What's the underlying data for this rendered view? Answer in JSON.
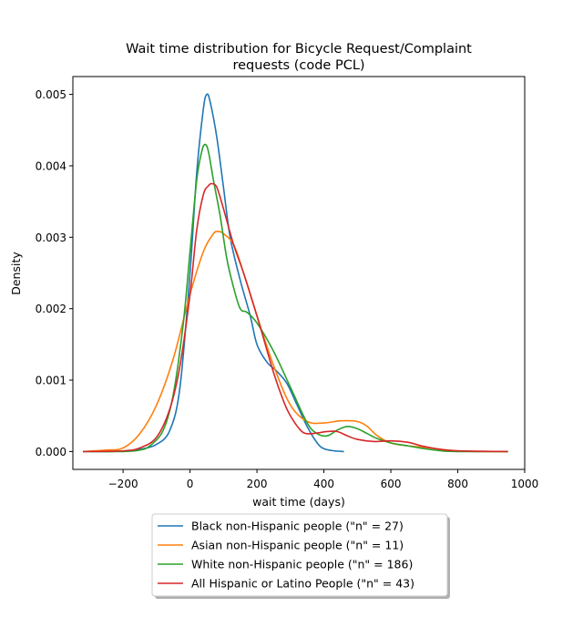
{
  "chart_data": {
    "type": "line",
    "title_line1": "Wait time distribution  for Bicycle Request/Complaint",
    "title_line2": "requests (code PCL)",
    "xlabel": "wait time (days)",
    "ylabel": "Density",
    "xlim": [
      -350,
      1000
    ],
    "ylim": [
      -0.00025,
      0.00525
    ],
    "xticks": [
      -200,
      0,
      200,
      400,
      600,
      800,
      1000
    ],
    "xtick_labels": [
      "−200",
      "0",
      "200",
      "400",
      "600",
      "800",
      "1000"
    ],
    "yticks": [
      0,
      0.001,
      0.002,
      0.003,
      0.004,
      0.005
    ],
    "ytick_labels": [
      "0.000",
      "0.001",
      "0.002",
      "0.003",
      "0.004",
      "0.005"
    ],
    "grid": false,
    "legend_position": "below-center",
    "series": [
      {
        "name": "Black non-Hispanic people (\"n\" = 27)",
        "color": "#1f77b4",
        "x": [
          -300,
          -200,
          -150,
          -100,
          -60,
          -30,
          0,
          20,
          40,
          50,
          60,
          80,
          100,
          120,
          150,
          180,
          200,
          230,
          260,
          290,
          320,
          350,
          380,
          400,
          430,
          460
        ],
        "y": [
          0,
          5e-06,
          3e-05,
          0.0001,
          0.0003,
          0.0009,
          0.0025,
          0.0039,
          0.0048,
          0.005,
          0.0049,
          0.0044,
          0.0037,
          0.003,
          0.0024,
          0.0019,
          0.0015,
          0.00125,
          0.00112,
          0.00095,
          0.00065,
          0.00035,
          0.00012,
          4e-05,
          1e-05,
          0
        ]
      },
      {
        "name": "Asian non-Hispanic people (\"n\" = 11)",
        "color": "#ff7f0e",
        "x": [
          -320,
          -250,
          -200,
          -150,
          -100,
          -50,
          0,
          40,
          70,
          85,
          100,
          130,
          160,
          200,
          250,
          300,
          350,
          400,
          450,
          500,
          530,
          560,
          600,
          650,
          700,
          750,
          800,
          850,
          950
        ],
        "y": [
          0,
          2e-05,
          5e-05,
          0.00025,
          0.00065,
          0.0013,
          0.0022,
          0.0028,
          0.00305,
          0.00308,
          0.00305,
          0.0029,
          0.0025,
          0.0019,
          0.0012,
          0.00065,
          0.00042,
          0.0004,
          0.00043,
          0.00042,
          0.00035,
          0.00022,
          0.00012,
          8e-05,
          6e-05,
          3e-05,
          1e-05,
          0,
          0
        ]
      },
      {
        "name": "White non-Hispanic people (\"n\" = 186)",
        "color": "#2ca02c",
        "x": [
          -320,
          -200,
          -150,
          -120,
          -80,
          -50,
          -20,
          0,
          20,
          35,
          45,
          55,
          70,
          90,
          110,
          130,
          150,
          170,
          200,
          250,
          300,
          350,
          380,
          410,
          440,
          470,
          500,
          530,
          560,
          600,
          650,
          700,
          750,
          800,
          950
        ],
        "y": [
          0,
          0,
          2e-05,
          8e-05,
          0.0003,
          0.0008,
          0.0018,
          0.0028,
          0.0038,
          0.0042,
          0.0043,
          0.0042,
          0.0038,
          0.0033,
          0.0027,
          0.0023,
          0.002,
          0.00195,
          0.0018,
          0.0014,
          0.0009,
          0.0004,
          0.00025,
          0.00022,
          0.0003,
          0.00035,
          0.00032,
          0.00025,
          0.00018,
          0.00012,
          8e-05,
          4e-05,
          1e-05,
          0,
          0
        ]
      },
      {
        "name": "All Hispanic or Latino People (\"n\" = 43)",
        "color": "#d62728",
        "x": [
          -320,
          -200,
          -150,
          -100,
          -60,
          -30,
          0,
          20,
          40,
          55,
          65,
          80,
          100,
          130,
          160,
          200,
          250,
          280,
          300,
          330,
          350,
          380,
          410,
          440,
          470,
          500,
          550,
          600,
          650,
          700,
          750,
          800,
          950
        ],
        "y": [
          0,
          1e-05,
          5e-05,
          0.0002,
          0.0006,
          0.0012,
          0.0022,
          0.0031,
          0.0036,
          0.00372,
          0.00375,
          0.0037,
          0.0034,
          0.0029,
          0.0025,
          0.0019,
          0.0011,
          0.0007,
          0.0005,
          0.0003,
          0.00025,
          0.00026,
          0.00028,
          0.00028,
          0.00022,
          0.00017,
          0.00014,
          0.00015,
          0.00013,
          7e-05,
          3e-05,
          1e-05,
          0
        ]
      }
    ]
  }
}
